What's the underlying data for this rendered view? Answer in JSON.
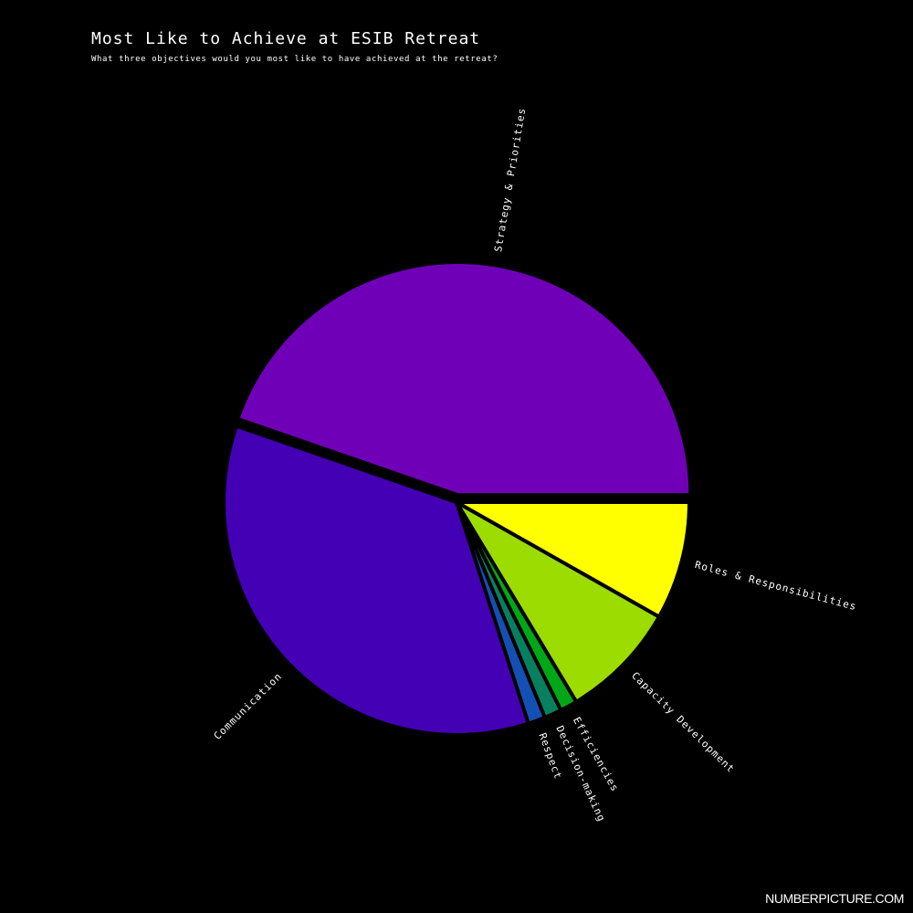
{
  "header": {
    "title": "Most Like to Achieve at ESIB Retreat",
    "subtitle": "What three objectives would you most like to have achieved at the retreat?"
  },
  "footer": {
    "brand": "NUMBERPICTURE.COM"
  },
  "chart_data": {
    "type": "pie",
    "title": "Most Like to Achieve at ESIB Retreat",
    "subtitle": "What three objectives would you most like to have achieved at the retreat?",
    "legend": "none",
    "exploded_slice": "Strategy & Priorities",
    "start_angle_deg": 0,
    "direction": "clockwise",
    "slices": [
      {
        "label": "Roles & Responsibilities",
        "value": 8.2,
        "color": "#ffff00"
      },
      {
        "label": "Capacity Development",
        "value": 8.2,
        "color": "#9cdc00"
      },
      {
        "label": "Efficiencies",
        "value": 1.2,
        "color": "#00a818"
      },
      {
        "label": "Decision-making",
        "value": 1.2,
        "color": "#088060"
      },
      {
        "label": "Respect",
        "value": 1.2,
        "color": "#1450b4"
      },
      {
        "label": "Communication",
        "value": 35.3,
        "color": "#4400b4"
      },
      {
        "label": "Strategy & Priorities",
        "value": 44.7,
        "color": "#7000b8"
      }
    ]
  }
}
